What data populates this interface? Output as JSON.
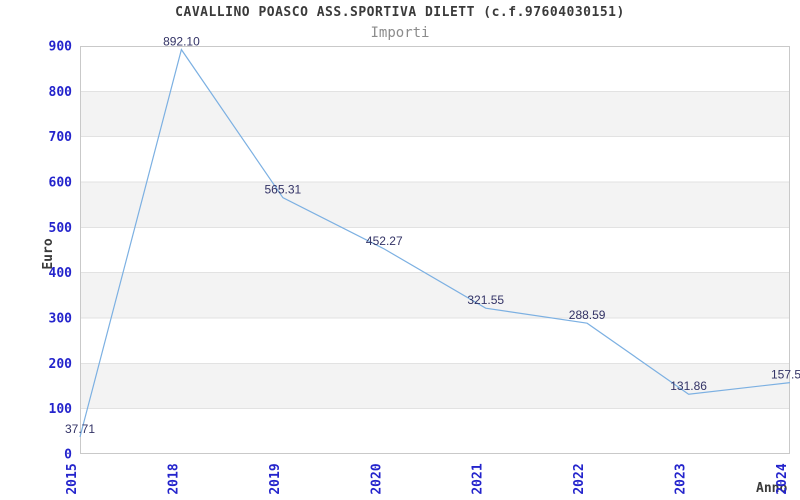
{
  "chart_data": {
    "type": "line",
    "title": "CAVALLINO POASCO ASS.SPORTIVA DILETT (c.f.97604030151)",
    "subtitle": "Importi",
    "xlabel": "Anno",
    "ylabel": "Euro",
    "categories": [
      "2015",
      "2018",
      "2019",
      "2020",
      "2021",
      "2022",
      "2023",
      "2024"
    ],
    "series": [
      {
        "name": "Importi",
        "values": [
          37.71,
          892.1,
          565.31,
          452.27,
          321.55,
          288.59,
          131.86,
          157.5
        ]
      }
    ],
    "point_labels": [
      "37.71",
      "892.10",
      "565.31",
      "452.27",
      "321.55",
      "288.59",
      "131.86",
      "157.5"
    ],
    "ylim": [
      0,
      900
    ],
    "yticks": [
      0,
      100,
      200,
      300,
      400,
      500,
      600,
      700,
      800,
      900
    ],
    "grid": "horizontal",
    "band_ranges": [
      [
        100,
        200
      ],
      [
        300,
        400
      ],
      [
        500,
        600
      ],
      [
        700,
        800
      ]
    ],
    "legend": "none",
    "colors": {
      "line": "#7cb0e2",
      "tick_label": "#2424cc",
      "point_label": "#333366",
      "band_fill": "#f3f3f3",
      "gridline": "#e2e2e2",
      "plot_border": "#c9c9c9",
      "title": "#3a3a3a",
      "subtitle": "#8c8c8c",
      "axis_title": "#3a3a3a",
      "background": "#ffffff"
    }
  }
}
